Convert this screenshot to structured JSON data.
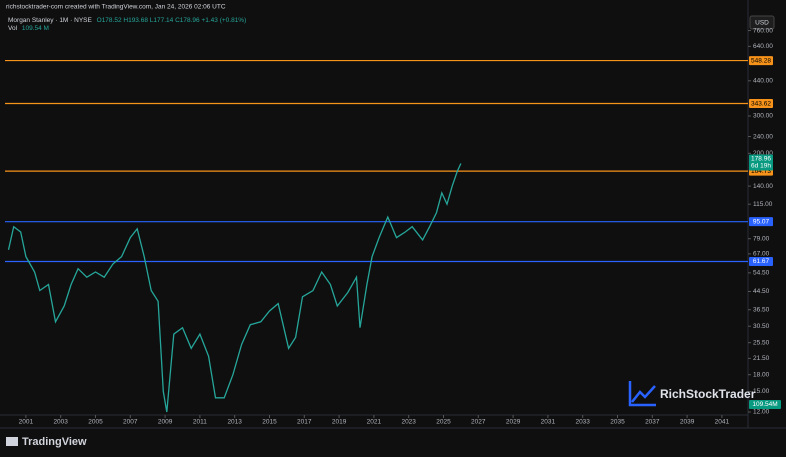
{
  "header": {
    "attribution": "richstocktrader-com created with TradingView.com, Jan 24, 2026 02:06 UTC",
    "symbol": "· 1M · NYSE",
    "ohlc": "O178.52 H193.68 L177.14 C178.96 +1.43 (+0.81%)",
    "volume_label": "Vol",
    "volume": "109.54 M"
  },
  "currency": "USD",
  "brand": "TradingView",
  "watermark": "RichStockTrader",
  "chart_data": {
    "type": "line",
    "log_scale": true,
    "x": [
      2000.0,
      2000.3,
      2000.7,
      2001.0,
      2001.5,
      2001.8,
      2002.3,
      2002.7,
      2003.2,
      2003.6,
      2004.0,
      2004.5,
      2005.0,
      2005.5,
      2006.0,
      2006.5,
      2007.0,
      2007.4,
      2007.8,
      2008.2,
      2008.6,
      2008.9,
      2009.1,
      2009.5,
      2010.0,
      2010.5,
      2011.0,
      2011.5,
      2011.9,
      2012.4,
      2012.9,
      2013.4,
      2013.9,
      2014.5,
      2015.0,
      2015.5,
      2016.1,
      2016.5,
      2016.9,
      2017.5,
      2018.0,
      2018.5,
      2018.9,
      2019.5,
      2020.0,
      2020.2,
      2020.6,
      2020.9,
      2021.3,
      2021.8,
      2022.3,
      2022.8,
      2023.2,
      2023.8,
      2024.2,
      2024.6,
      2024.9,
      2025.2,
      2025.5,
      2025.8,
      2026.0
    ],
    "series": [
      {
        "name": "Morgan Stanley",
        "color": "#26a69a",
        "values": [
          70,
          90,
          85,
          65,
          55,
          45,
          48,
          32,
          38,
          48,
          57,
          52,
          55,
          52,
          60,
          65,
          80,
          88,
          65,
          45,
          40,
          15,
          12,
          28,
          30,
          24,
          28,
          22,
          14,
          14,
          18,
          25,
          31,
          32,
          36,
          39,
          24,
          27,
          42,
          45,
          55,
          48,
          38,
          44,
          52,
          30,
          48,
          65,
          80,
          100,
          80,
          85,
          90,
          78,
          90,
          105,
          130,
          115,
          140,
          165,
          178.96
        ]
      }
    ],
    "xlim": [
      1999.8,
      2042.5
    ],
    "xticks": [
      2001,
      2003,
      2005,
      2007,
      2009,
      2011,
      2013,
      2015,
      2017,
      2019,
      2021,
      2023,
      2025,
      2027,
      2029,
      2031,
      2033,
      2035,
      2037,
      2039,
      2041
    ],
    "ylim": [
      12,
      900
    ],
    "yticks": [
      {
        "value": 760,
        "label": "760.00"
      },
      {
        "value": 640,
        "label": "640.00"
      },
      {
        "value": 440,
        "label": "440.00"
      },
      {
        "value": 300,
        "label": "300.00"
      },
      {
        "value": 240,
        "label": "240.00"
      },
      {
        "value": 200,
        "label": "200.00"
      },
      {
        "value": 140,
        "label": "140.00"
      },
      {
        "value": 115,
        "label": "115.00"
      },
      {
        "value": 79,
        "label": "79.00"
      },
      {
        "value": 67,
        "label": "67.00"
      },
      {
        "value": 54.5,
        "label": "54.50"
      },
      {
        "value": 44.5,
        "label": "44.50"
      },
      {
        "value": 36.5,
        "label": "36.50"
      },
      {
        "value": 30.5,
        "label": "30.50"
      },
      {
        "value": 25.5,
        "label": "25.50"
      },
      {
        "value": 21.5,
        "label": "21.50"
      },
      {
        "value": 18,
        "label": "18.00"
      },
      {
        "value": 15,
        "label": "15.00"
      },
      {
        "value": 12,
        "label": "12.00"
      }
    ],
    "levels": [
      {
        "value": 548.28,
        "color": "#f7931a"
      },
      {
        "value": 343.62,
        "color": "#f7931a"
      },
      {
        "value": 164.73,
        "color": "#f7931a"
      },
      {
        "value": 95.07,
        "color": "#2962ff"
      },
      {
        "value": 61.67,
        "color": "#2962ff"
      }
    ],
    "countdown": "6d 19h",
    "volume_axis_label": "109.54M"
  }
}
